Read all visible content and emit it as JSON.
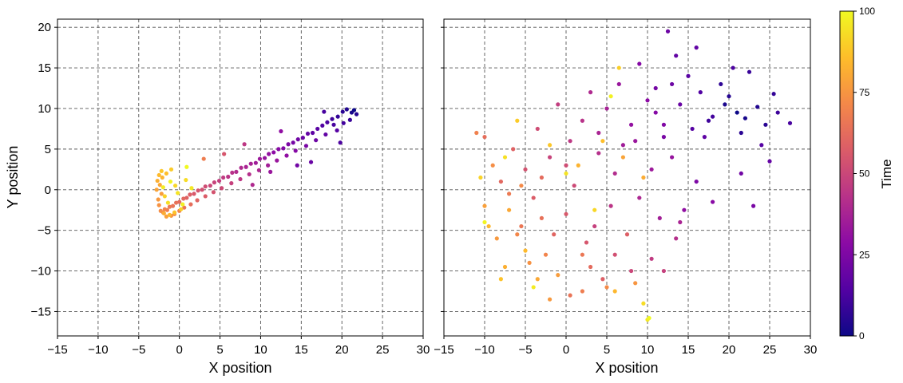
{
  "chart_data": [
    {
      "type": "scatter",
      "panel": "left",
      "xlabel": "X position",
      "ylabel": "Y position",
      "xlim": [
        -15,
        30
      ],
      "ylim": [
        -18,
        21
      ],
      "xticks": [
        -15,
        -10,
        -5,
        0,
        5,
        10,
        15,
        20,
        25,
        30
      ],
      "yticks": [
        -15,
        -10,
        -5,
        0,
        5,
        10,
        15,
        20
      ],
      "grid": true,
      "grid_style": "dashed",
      "color_by": "Time",
      "points_encoding": "[x, y, time]",
      "points": [
        [
          21.5,
          9.8,
          0
        ],
        [
          21.2,
          9.5,
          2
        ],
        [
          20.6,
          9.9,
          4
        ],
        [
          21.8,
          9.3,
          5
        ],
        [
          20.1,
          9.6,
          6
        ],
        [
          19.5,
          9.0,
          8
        ],
        [
          21.0,
          8.6,
          9
        ],
        [
          18.8,
          8.7,
          10
        ],
        [
          20.2,
          8.2,
          11
        ],
        [
          19.0,
          8.0,
          12
        ],
        [
          18.2,
          8.3,
          13
        ],
        [
          17.6,
          7.9,
          14
        ],
        [
          19.4,
          7.3,
          15
        ],
        [
          17.0,
          7.5,
          16
        ],
        [
          16.4,
          7.0,
          17
        ],
        [
          18.0,
          6.8,
          18
        ],
        [
          15.8,
          6.9,
          19
        ],
        [
          15.2,
          6.4,
          20
        ],
        [
          16.8,
          6.1,
          21
        ],
        [
          14.6,
          6.2,
          22
        ],
        [
          14.0,
          5.8,
          23
        ],
        [
          15.6,
          5.4,
          24
        ],
        [
          13.4,
          5.6,
          25
        ],
        [
          12.8,
          5.1,
          26
        ],
        [
          14.3,
          4.8,
          27
        ],
        [
          12.2,
          5.0,
          28
        ],
        [
          11.6,
          4.6,
          29
        ],
        [
          13.2,
          4.2,
          30
        ],
        [
          11.0,
          4.4,
          31
        ],
        [
          10.5,
          3.9,
          32
        ],
        [
          12.0,
          3.6,
          33
        ],
        [
          9.9,
          3.8,
          34
        ],
        [
          9.4,
          3.3,
          35
        ],
        [
          10.9,
          3.0,
          36
        ],
        [
          8.8,
          3.2,
          37
        ],
        [
          8.2,
          2.8,
          38
        ],
        [
          9.8,
          2.4,
          39
        ],
        [
          7.6,
          2.7,
          40
        ],
        [
          7.0,
          2.2,
          41
        ],
        [
          8.6,
          1.9,
          42
        ],
        [
          6.5,
          2.1,
          43
        ],
        [
          6.0,
          1.6,
          44
        ],
        [
          7.5,
          1.3,
          45
        ],
        [
          5.4,
          1.5,
          46
        ],
        [
          4.9,
          1.1,
          47
        ],
        [
          6.4,
          0.8,
          48
        ],
        [
          4.3,
          0.9,
          49
        ],
        [
          3.8,
          0.5,
          50
        ],
        [
          5.2,
          0.2,
          51
        ],
        [
          3.2,
          0.4,
          52
        ],
        [
          2.8,
          0.0,
          53
        ],
        [
          4.2,
          -0.3,
          54
        ],
        [
          2.3,
          -0.1,
          55
        ],
        [
          1.8,
          -0.5,
          56
        ],
        [
          3.2,
          -0.8,
          57
        ],
        [
          1.3,
          -0.6,
          58
        ],
        [
          0.9,
          -1.0,
          59
        ],
        [
          2.2,
          -1.3,
          60
        ],
        [
          0.5,
          -1.1,
          61
        ],
        [
          0.0,
          -1.5,
          62
        ],
        [
          1.4,
          -1.8,
          63
        ],
        [
          -0.4,
          -1.6,
          64
        ],
        [
          -0.8,
          -2.0,
          65
        ],
        [
          0.6,
          -2.2,
          66
        ],
        [
          -1.2,
          -2.1,
          67
        ],
        [
          -1.5,
          -2.5,
          68
        ],
        [
          0.0,
          -2.6,
          69
        ],
        [
          -1.8,
          -2.4,
          70
        ],
        [
          -2.0,
          -2.8,
          71
        ],
        [
          -0.6,
          -3.0,
          72
        ],
        [
          -2.3,
          -2.6,
          73
        ],
        [
          -2.5,
          -1.9,
          74
        ],
        [
          -1.0,
          -3.2,
          75
        ],
        [
          -2.6,
          -1.2,
          76
        ],
        [
          -2.2,
          -0.5,
          77
        ],
        [
          -1.6,
          -3.3,
          78
        ],
        [
          -2.8,
          0.0,
          79
        ],
        [
          -2.4,
          0.6,
          80
        ],
        [
          -1.9,
          -2.9,
          81
        ],
        [
          -2.7,
          1.1,
          82
        ],
        [
          -2.1,
          1.5,
          83
        ],
        [
          -1.2,
          -3.1,
          84
        ],
        [
          -2.5,
          1.8,
          85
        ],
        [
          -1.6,
          2.0,
          86
        ],
        [
          -0.6,
          -2.8,
          87
        ],
        [
          -2.2,
          2.3,
          88
        ],
        [
          -1.0,
          2.5,
          89
        ],
        [
          0.2,
          -2.4,
          90
        ],
        [
          -1.8,
          -0.8,
          91
        ],
        [
          -0.5,
          0.5,
          92
        ],
        [
          0.8,
          1.2,
          93
        ],
        [
          -1.4,
          -1.6,
          94
        ],
        [
          -0.2,
          -0.4,
          95
        ],
        [
          1.5,
          0.2,
          96
        ],
        [
          -2.0,
          0.3,
          97
        ],
        [
          0.4,
          -1.8,
          98
        ],
        [
          -1.1,
          1.0,
          99
        ],
        [
          0.9,
          2.8,
          100
        ],
        [
          17.8,
          9.6,
          12
        ],
        [
          12.5,
          7.2,
          30
        ],
        [
          8.0,
          5.6,
          45
        ],
        [
          5.5,
          4.4,
          55
        ],
        [
          3.0,
          3.8,
          68
        ],
        [
          14.5,
          3.0,
          22
        ],
        [
          11.2,
          2.2,
          33
        ],
        [
          9.0,
          0.6,
          40
        ],
        [
          19.8,
          5.8,
          13
        ],
        [
          16.2,
          3.4,
          20
        ]
      ]
    },
    {
      "type": "scatter",
      "panel": "right",
      "xlabel": "X position",
      "xlim": [
        -15,
        30
      ],
      "ylim": [
        -18,
        21
      ],
      "xticks": [
        -15,
        -10,
        -5,
        0,
        5,
        10,
        15,
        20,
        25,
        30
      ],
      "yticks": [
        -15,
        -10,
        -5,
        0,
        5,
        10,
        15,
        20
      ],
      "grid": true,
      "grid_style": "dashed",
      "color_by": "Time",
      "points_encoding": "[x, y, time]",
      "points": [
        [
          21.0,
          9.5,
          0
        ],
        [
          22.0,
          8.8,
          2
        ],
        [
          23.5,
          10.2,
          4
        ],
        [
          20.0,
          11.5,
          5
        ],
        [
          24.5,
          8.0,
          6
        ],
        [
          19.0,
          13.0,
          7
        ],
        [
          25.5,
          11.8,
          8
        ],
        [
          22.5,
          14.5,
          9
        ],
        [
          26.0,
          9.5,
          10
        ],
        [
          18.0,
          9.0,
          11
        ],
        [
          27.5,
          8.2,
          12
        ],
        [
          20.5,
          15.0,
          13
        ],
        [
          16.5,
          12.0,
          14
        ],
        [
          24.0,
          5.5,
          15
        ],
        [
          15.0,
          14.0,
          16
        ],
        [
          17.0,
          6.5,
          17
        ],
        [
          13.5,
          16.5,
          18
        ],
        [
          25.0,
          3.5,
          19
        ],
        [
          14.0,
          10.5,
          20
        ],
        [
          12.5,
          19.5,
          21
        ],
        [
          21.5,
          2.0,
          22
        ],
        [
          11.0,
          12.5,
          23
        ],
        [
          23.0,
          -2.0,
          24
        ],
        [
          16.0,
          1.0,
          25
        ],
        [
          12.0,
          8.0,
          26
        ],
        [
          9.0,
          15.5,
          27
        ],
        [
          18.0,
          -1.5,
          28
        ],
        [
          10.0,
          11.0,
          29
        ],
        [
          14.5,
          -2.5,
          30
        ],
        [
          8.0,
          8.0,
          31
        ],
        [
          13.0,
          4.0,
          32
        ],
        [
          6.5,
          13.0,
          33
        ],
        [
          10.5,
          2.5,
          34
        ],
        [
          7.0,
          5.5,
          35
        ],
        [
          11.5,
          -3.5,
          36
        ],
        [
          5.0,
          10.0,
          37
        ],
        [
          4.0,
          7.0,
          38
        ],
        [
          9.0,
          -1.0,
          39
        ],
        [
          3.0,
          12.0,
          40
        ],
        [
          6.0,
          2.0,
          41
        ],
        [
          13.5,
          -6.0,
          42
        ],
        [
          2.0,
          8.5,
          43
        ],
        [
          5.5,
          -2.0,
          44
        ],
        [
          0.5,
          6.0,
          45
        ],
        [
          10.5,
          -8.5,
          46
        ],
        [
          -1.0,
          10.5,
          47
        ],
        [
          3.5,
          -4.5,
          48
        ],
        [
          -2.0,
          4.0,
          49
        ],
        [
          8.0,
          -10.0,
          50
        ],
        [
          1.0,
          0.5,
          51
        ],
        [
          -3.5,
          7.5,
          52
        ],
        [
          6.0,
          -8.0,
          53
        ],
        [
          -5.0,
          2.5,
          54
        ],
        [
          2.5,
          -6.5,
          55
        ],
        [
          0.0,
          -3.0,
          56
        ],
        [
          -4.0,
          -1.0,
          57
        ],
        [
          4.5,
          -11.0,
          58
        ],
        [
          -6.5,
          5.0,
          59
        ],
        [
          -1.5,
          -5.5,
          60
        ],
        [
          -8.0,
          1.0,
          61
        ],
        [
          3.0,
          -9.5,
          62
        ],
        [
          -10.0,
          6.5,
          63
        ],
        [
          -3.0,
          -3.5,
          64
        ],
        [
          0.5,
          -13.0,
          65
        ],
        [
          -5.5,
          -4.5,
          66
        ],
        [
          -7.0,
          -0.5,
          67
        ],
        [
          2.0,
          -12.5,
          68
        ],
        [
          -11.0,
          7.0,
          69
        ],
        [
          -2.5,
          -8.0,
          70
        ],
        [
          -6.0,
          -5.5,
          71
        ],
        [
          5.0,
          -12.0,
          72
        ],
        [
          -9.0,
          3.0,
          73
        ],
        [
          -4.5,
          -9.0,
          74
        ],
        [
          8.5,
          -11.5,
          75
        ],
        [
          -8.5,
          -6.0,
          76
        ],
        [
          -1.0,
          -10.5,
          77
        ],
        [
          -10.0,
          -2.0,
          78
        ],
        [
          7.0,
          4.0,
          79
        ],
        [
          -3.5,
          -11.0,
          80
        ],
        [
          9.5,
          1.5,
          81
        ],
        [
          -7.5,
          -9.5,
          82
        ],
        [
          1.5,
          3.0,
          83
        ],
        [
          -9.5,
          -4.5,
          84
        ],
        [
          -5.0,
          -7.5,
          85
        ],
        [
          4.5,
          6.0,
          86
        ],
        [
          -8.0,
          -11.0,
          87
        ],
        [
          -2.0,
          5.5,
          88
        ],
        [
          -6.0,
          8.5,
          89
        ],
        [
          6.5,
          15.0,
          90
        ],
        [
          -10.5,
          1.5,
          91
        ],
        [
          3.5,
          -2.5,
          92
        ],
        [
          9.5,
          -14.0,
          93
        ],
        [
          -7.5,
          4.0,
          94
        ],
        [
          0.0,
          2.0,
          95
        ],
        [
          10.0,
          -16.0,
          96
        ],
        [
          -4.0,
          -12.0,
          97
        ],
        [
          5.5,
          11.5,
          98
        ],
        [
          -10.0,
          -4.0,
          99
        ],
        [
          10.2,
          -15.8,
          100
        ],
        [
          19.5,
          10.5,
          3
        ],
        [
          21.5,
          7.0,
          6
        ],
        [
          17.5,
          8.5,
          10
        ],
        [
          15.5,
          7.5,
          15
        ],
        [
          12.0,
          6.5,
          24
        ],
        [
          8.5,
          6.0,
          33
        ],
        [
          4.0,
          4.5,
          42
        ],
        [
          0.0,
          3.0,
          52
        ],
        [
          -3.0,
          1.5,
          62
        ],
        [
          -5.5,
          0.5,
          72
        ],
        [
          -7.0,
          -2.5,
          80
        ],
        [
          2.0,
          -8.0,
          66
        ],
        [
          12.0,
          -10.0,
          48
        ],
        [
          14.0,
          -4.0,
          38
        ],
        [
          7.5,
          -5.5,
          58
        ],
        [
          -2.0,
          -13.5,
          76
        ],
        [
          6.0,
          -12.5,
          84
        ],
        [
          11.0,
          9.5,
          27
        ],
        [
          13.0,
          13.0,
          21
        ],
        [
          16.0,
          17.5,
          18
        ]
      ]
    }
  ],
  "colorbar": {
    "label": "Time",
    "min": 0,
    "max": 100,
    "ticks": [
      0,
      25,
      50,
      75,
      100
    ],
    "colormap": "plasma",
    "colors": [
      "#0d0887",
      "#5302a3",
      "#8b0aa5",
      "#b83289",
      "#db5c68",
      "#f48849",
      "#febd2a",
      "#f0f921"
    ]
  },
  "style": {
    "grid_color": "#555555",
    "axis_color": "#000000"
  }
}
